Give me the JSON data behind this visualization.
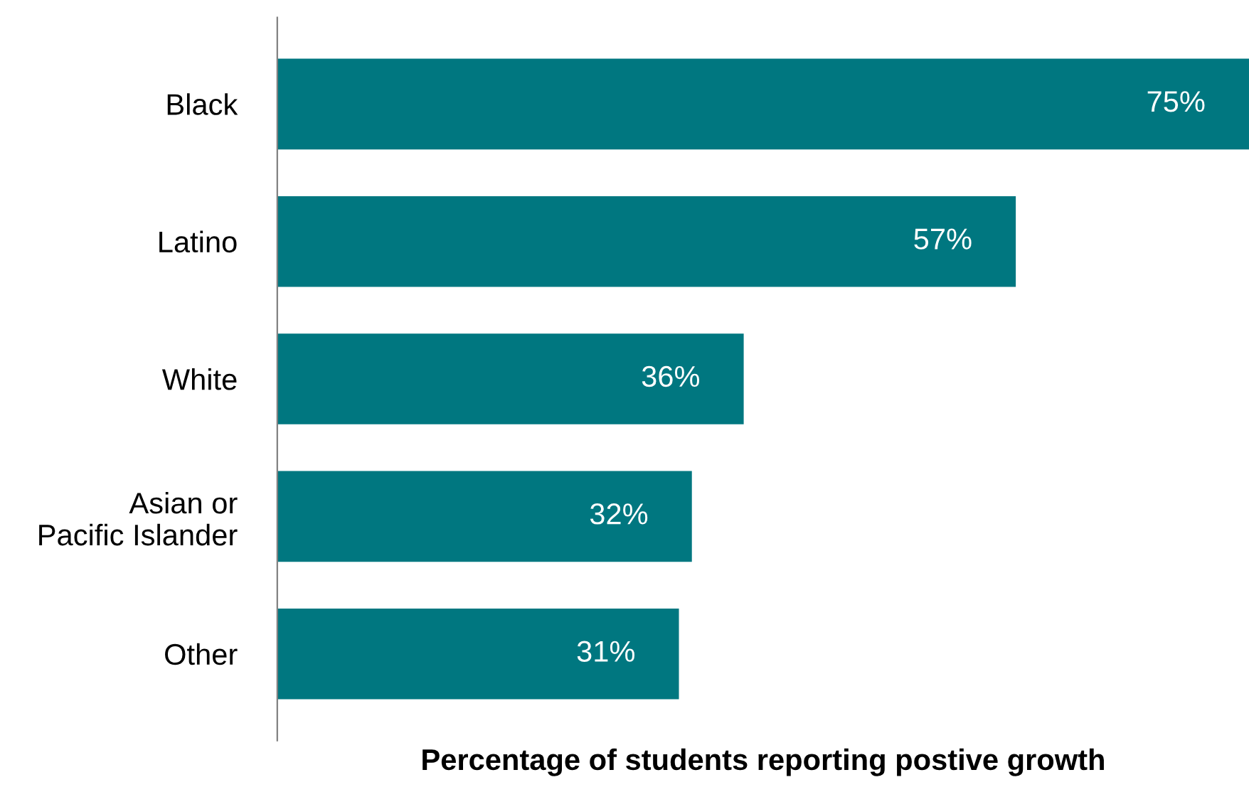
{
  "chart_data": {
    "type": "bar",
    "orientation": "horizontal",
    "xlabel": "Percentage of students reporting postive growth",
    "categories": [
      "Black",
      "Latino",
      "White",
      "Asian or\nPacific Islander",
      "Other"
    ],
    "values": [
      75,
      57,
      36,
      32,
      31
    ],
    "value_labels": [
      "75%",
      "57%",
      "36%",
      "32%",
      "31%"
    ],
    "color": "#007780",
    "grid": false,
    "legend": false,
    "tick_labels": "y"
  }
}
